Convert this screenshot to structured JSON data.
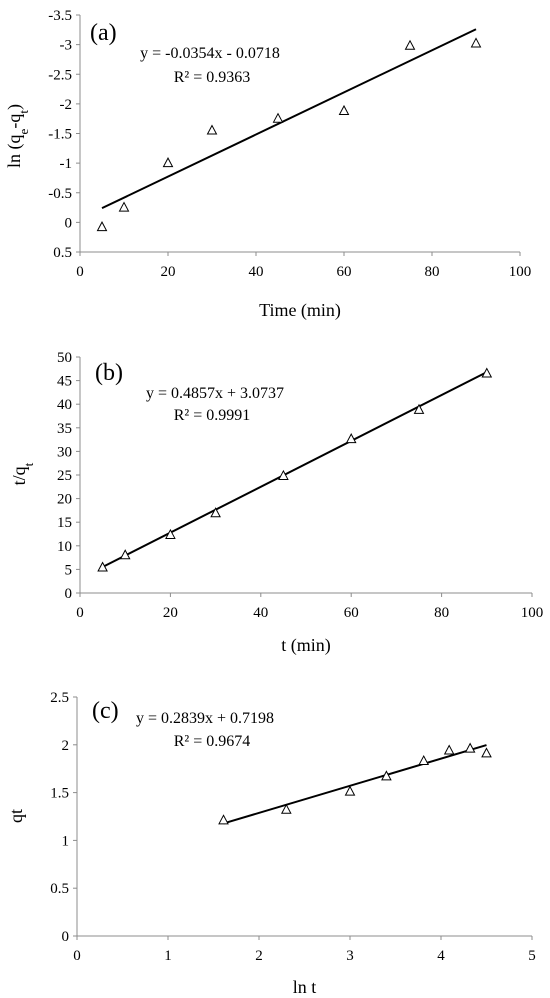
{
  "chart_data": [
    {
      "type": "scatter",
      "panel_label": "(a)",
      "xlabel": "Time (min)",
      "ylabel": "ln (q",
      "ylabel_parts": [
        {
          "t": "ln (q",
          "sub": false
        },
        {
          "t": "e",
          "sub": true
        },
        {
          "t": "-q",
          "sub": false
        },
        {
          "t": "t",
          "sub": true
        },
        {
          "t": ")",
          "sub": false
        }
      ],
      "xlim": [
        0,
        100
      ],
      "ylim": [
        0.5,
        -3.5
      ],
      "y_reversed": true,
      "x_ticks": [
        0,
        20,
        40,
        60,
        80,
        100
      ],
      "y_ticks": [
        -3.5,
        -3,
        -2.5,
        -2,
        -1.5,
        -1,
        -0.5,
        0,
        0.5
      ],
      "y_tick_labels": [
        "-3.5",
        "-3",
        "-2.5",
        "-2",
        "-1.5",
        "-1",
        "-0.5",
        "0",
        "0.5"
      ],
      "x_tick_labels": [
        "0",
        "20",
        "40",
        "60",
        "80",
        "100"
      ],
      "grid": false,
      "marker": "triangle-open",
      "series": [
        {
          "x": [
            5,
            10,
            20,
            30,
            45,
            60,
            75,
            90
          ],
          "y": [
            0.08,
            -0.25,
            -1.0,
            -1.55,
            -1.75,
            -1.88,
            -2.98,
            -3.02
          ]
        }
      ],
      "trendline": {
        "x": [
          5,
          90
        ],
        "y": [
          -0.24,
          -3.26
        ]
      },
      "equation": "y = -0.0354x  - 0.0718",
      "r2": "R² = 0.9363"
    },
    {
      "type": "scatter",
      "panel_label": "(b)",
      "xlabel": "t (min)",
      "ylabel": "t/q",
      "ylabel_parts": [
        {
          "t": "t/q",
          "sub": false
        },
        {
          "t": "t",
          "sub": true
        }
      ],
      "xlim": [
        0,
        100
      ],
      "ylim": [
        0,
        50
      ],
      "y_reversed": false,
      "x_ticks": [
        0,
        20,
        40,
        60,
        80,
        100
      ],
      "y_ticks": [
        0,
        5,
        10,
        15,
        20,
        25,
        30,
        35,
        40,
        45,
        50
      ],
      "x_tick_labels": [
        "0",
        "20",
        "40",
        "60",
        "80",
        "100"
      ],
      "y_tick_labels": [
        "0",
        "5",
        "10",
        "15",
        "20",
        "25",
        "30",
        "35",
        "40",
        "45",
        "50"
      ],
      "grid": false,
      "marker": "triangle-open",
      "series": [
        {
          "x": [
            5,
            10,
            20,
            30,
            45,
            60,
            75,
            90
          ],
          "y": [
            5.4,
            8.0,
            12.3,
            16.9,
            24.8,
            32.6,
            38.8,
            46.5
          ]
        }
      ],
      "trendline": {
        "x": [
          5,
          90
        ],
        "y": [
          5.5,
          46.8
        ]
      },
      "equation": "y = 0.4857x + 3.0737",
      "r2": "R² = 0.9991"
    },
    {
      "type": "scatter",
      "panel_label": "(c)",
      "xlabel": "ln t",
      "ylabel": "qt",
      "ylabel_parts": [
        {
          "t": "qt",
          "sub": false
        }
      ],
      "xlim": [
        0,
        5
      ],
      "ylim": [
        0,
        2.5
      ],
      "y_reversed": false,
      "x_ticks": [
        0,
        1,
        2,
        3,
        4,
        5
      ],
      "y_ticks": [
        0,
        0.5,
        1,
        1.5,
        2,
        2.5
      ],
      "x_tick_labels": [
        "0",
        "1",
        "2",
        "3",
        "4",
        "5"
      ],
      "y_tick_labels": [
        "0",
        "0.5",
        "1",
        "1.5",
        "2",
        "2.5"
      ],
      "grid": false,
      "marker": "triangle-open",
      "series": [
        {
          "x": [
            1.61,
            2.3,
            3.0,
            3.4,
            3.81,
            4.09,
            4.32,
            4.5
          ],
          "y": [
            1.21,
            1.32,
            1.51,
            1.67,
            1.83,
            1.94,
            1.96,
            1.91
          ]
        }
      ],
      "trendline": {
        "x": [
          1.61,
          4.5
        ],
        "y": [
          1.177,
          1.997
        ]
      },
      "equation": "y = 0.2839x + 0.7198",
      "r2": "R² = 0.9674"
    }
  ]
}
